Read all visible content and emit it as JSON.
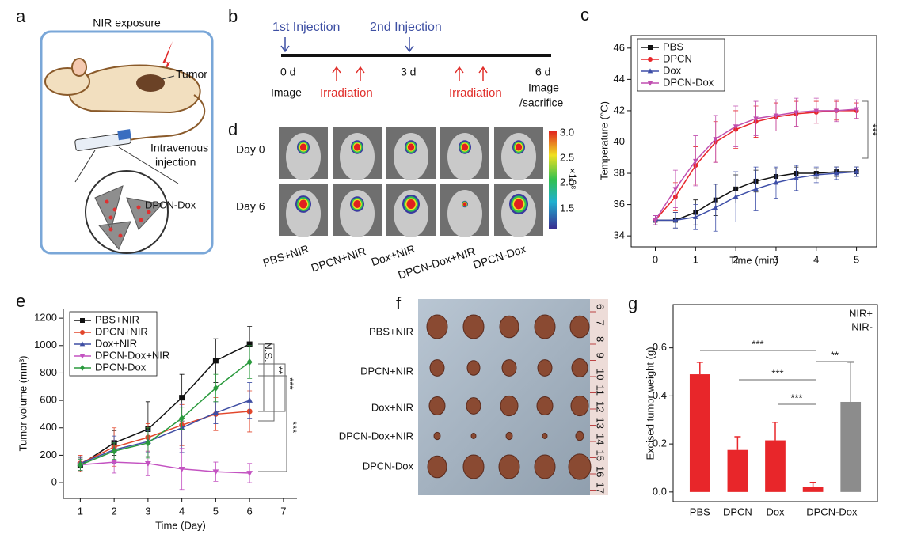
{
  "panel_labels": [
    "a",
    "b",
    "c",
    "d",
    "e",
    "f",
    "g"
  ],
  "schematic_a": {
    "exposure": "NIR exposure",
    "tumor": "Tumor",
    "route": [
      "Intravenous",
      "injection"
    ],
    "agent": "DPCN-Dox"
  },
  "timeline_b": {
    "injections": [
      "1st Injection",
      "2nd Injection"
    ],
    "days": [
      "0 d",
      "3 d",
      "6 d"
    ],
    "steps": [
      "Image",
      "Irradiation",
      "Irradiation"
    ],
    "end_step": [
      "Image",
      "/sacrifice"
    ]
  },
  "imaging_d": {
    "rows": [
      "Day 0",
      "Day 6"
    ],
    "groups": [
      "PBS+NIR",
      "DPCN+NIR",
      "Dox+NIR",
      "DPCN-Dox+NIR",
      "DPCN-Dox"
    ],
    "colorbar_ticks": [
      "3.0",
      "2.5",
      "2.0",
      "1.5"
    ],
    "colorbar_unit": "×10⁸"
  },
  "photo_f": {
    "groups": [
      "PBS+NIR",
      "DPCN+NIR",
      "Dox+NIR",
      "DPCN-Dox+NIR",
      "DPCN-Dox"
    ],
    "ruler": [
      "6",
      "7",
      "8",
      "9",
      "10",
      "11",
      "12",
      "13",
      "14",
      "15",
      "16",
      "17"
    ]
  },
  "chart_data": [
    {
      "type": "line",
      "x_label": "Time (min)",
      "y_label": "Temperature (°C)",
      "x": [
        0,
        0.5,
        1,
        1.5,
        2,
        2.5,
        3,
        3.5,
        4,
        4.5,
        5
      ],
      "xlim": [
        -0.6,
        5.5
      ],
      "ylim": [
        33.3,
        46.8
      ],
      "xticks": [
        0,
        1,
        2,
        3,
        4,
        5
      ],
      "yticks": [
        34,
        36,
        38,
        40,
        42,
        44,
        46
      ],
      "legend": "upper left",
      "series": [
        {
          "name": "PBS",
          "color": "#111111",
          "marker": "square",
          "values": [
            35,
            35,
            35.5,
            36.3,
            37,
            37.5,
            37.8,
            38,
            38,
            38.1,
            38.1
          ],
          "errors": [
            0.3,
            0.5,
            0.8,
            1.0,
            0.9,
            0.7,
            0.5,
            0.4,
            0.3,
            0.3,
            0.3
          ]
        },
        {
          "name": "DPCN",
          "color": "#e8262a",
          "marker": "circle",
          "values": [
            35,
            36.5,
            38.5,
            40,
            40.8,
            41.3,
            41.6,
            41.8,
            41.9,
            42,
            42
          ],
          "errors": [
            0.3,
            0.9,
            1.2,
            1.3,
            1.2,
            1.0,
            0.9,
            0.8,
            0.7,
            0.6,
            0.5
          ]
        },
        {
          "name": "Dox",
          "color": "#3e4fa8",
          "marker": "triangle",
          "values": [
            35,
            35,
            35.2,
            35.8,
            36.5,
            37,
            37.4,
            37.7,
            37.9,
            38,
            38.1
          ],
          "errors": [
            0.3,
            0.5,
            0.8,
            1.5,
            1.6,
            1.4,
            1.0,
            0.8,
            0.5,
            0.4,
            0.3
          ]
        },
        {
          "name": "DPCN-Dox",
          "color": "#c04fb0",
          "marker": "triangle-down",
          "values": [
            35,
            37,
            38.8,
            40.2,
            41,
            41.5,
            41.7,
            41.9,
            42,
            42,
            42.1
          ],
          "errors": [
            0.3,
            1.2,
            1.6,
            1.5,
            1.3,
            1.1,
            1.0,
            0.9,
            0.8,
            0.7,
            0.6
          ]
        }
      ],
      "annotations": [
        "***"
      ]
    },
    {
      "type": "line",
      "x_label": "Time (Day)",
      "y_label": "Tumor volume (mm³)",
      "x": [
        1,
        2,
        3,
        4,
        5,
        6
      ],
      "xlim": [
        0.5,
        7.4
      ],
      "ylim": [
        -115,
        1270
      ],
      "xticks": [
        1,
        2,
        3,
        4,
        5,
        6,
        7
      ],
      "yticks": [
        0,
        200,
        400,
        600,
        800,
        1000,
        1200
      ],
      "legend": "upper left",
      "series": [
        {
          "name": "PBS+NIR",
          "color": "#111111",
          "marker": "square",
          "values": [
            130,
            290,
            390,
            620,
            890,
            1010
          ],
          "errors": [
            50,
            90,
            200,
            170,
            160,
            130
          ]
        },
        {
          "name": "DPCN+NIR",
          "color": "#e2462b",
          "marker": "circle",
          "values": [
            140,
            260,
            330,
            420,
            500,
            520
          ],
          "errors": [
            60,
            140,
            100,
            150,
            120,
            150
          ]
        },
        {
          "name": "Dox+NIR",
          "color": "#3f4ea3",
          "marker": "triangle",
          "values": [
            140,
            240,
            300,
            400,
            510,
            600
          ],
          "errors": [
            50,
            100,
            80,
            180,
            80,
            130
          ]
        },
        {
          "name": "DPCN-Dox+NIR",
          "color": "#c352c1",
          "marker": "triangle-down",
          "values": [
            130,
            150,
            140,
            100,
            80,
            70
          ],
          "errors": [
            40,
            80,
            90,
            150,
            70,
            70
          ]
        },
        {
          "name": "DPCN-Dox",
          "color": "#2a9a3d",
          "marker": "diamond",
          "values": [
            130,
            230,
            290,
            470,
            690,
            880
          ],
          "errors": [
            40,
            60,
            110,
            80,
            100,
            120
          ]
        }
      ],
      "annotations": [
        "N.S.",
        "**",
        "***",
        "***"
      ]
    },
    {
      "type": "bar",
      "y_label": "Excised tumor weight (g)",
      "categories": [
        "PBS",
        "DPCN",
        "Dox",
        "DPCN-Dox"
      ],
      "ylim": [
        -0.04,
        0.78
      ],
      "yticks": [
        {
          "value": 0,
          "label": "0.0"
        },
        0.2,
        0.4,
        0.6
      ],
      "legend": "upper right",
      "series": [
        {
          "name": "NIR+",
          "color": "#e8262a",
          "values": [
            0.49,
            0.175,
            0.215,
            0.02
          ],
          "errors": [
            0.05,
            0.055,
            0.075,
            0.02
          ]
        },
        {
          "name": "NIR-",
          "color": "#8c8c8c",
          "values": [
            null,
            null,
            null,
            0.375
          ],
          "errors": [
            null,
            null,
            null,
            0.165
          ]
        }
      ],
      "annotations": [
        "***",
        "***",
        "***",
        "**"
      ]
    }
  ]
}
